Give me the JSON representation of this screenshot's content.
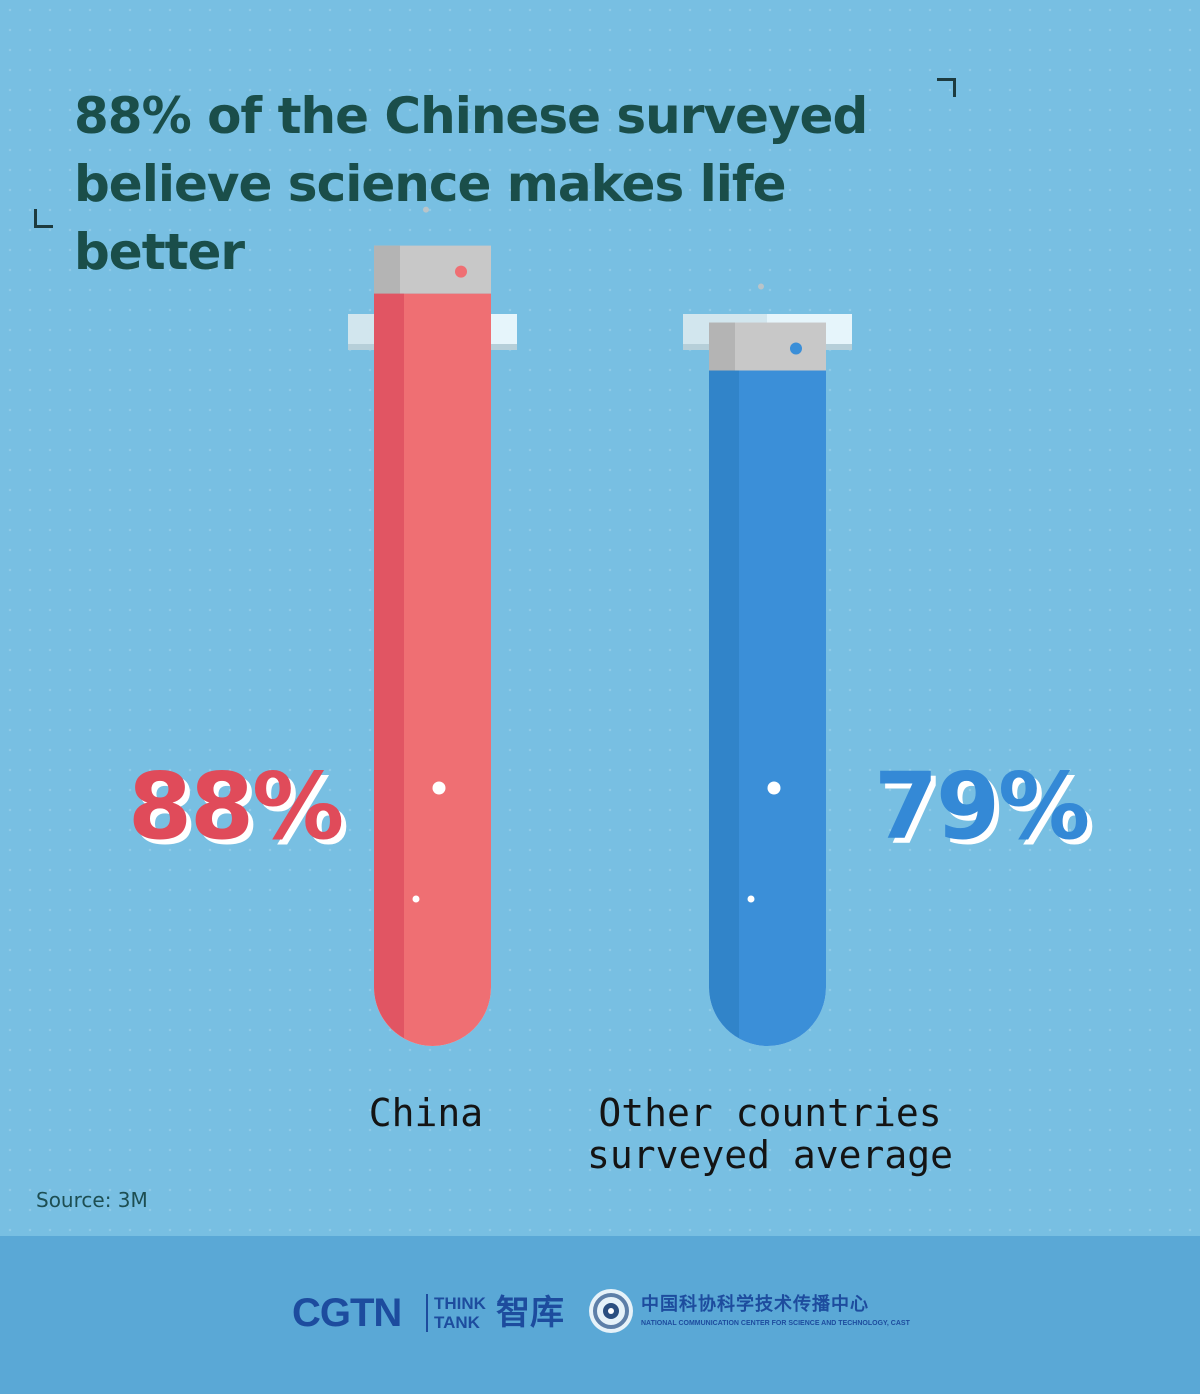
{
  "header": {
    "title_line1": "88% of the Chinese surveyed",
    "title_line2": "believe science makes life better"
  },
  "chart_data": {
    "type": "bar",
    "style": "test-tube",
    "title": "88% of the Chinese surveyed believe science makes life better",
    "unit": "%",
    "ylim": [
      0,
      100
    ],
    "categories": [
      "China",
      "Other countries surveyed average"
    ],
    "category_label_lines": [
      [
        "China"
      ],
      [
        "Other countries",
        "surveyed average"
      ]
    ],
    "values": [
      88,
      79
    ],
    "value_labels": [
      "88%",
      "79%"
    ],
    "colors": [
      "#ef6f73",
      "#3b8fd8"
    ]
  },
  "source": "Source: 3M",
  "footer": {
    "logo_cgtn": "CGTN",
    "logo_think": "THINK",
    "logo_tank": "TANK",
    "logo_cn": "智库",
    "center_cn": "中国科协科学技术传播中心",
    "center_en": "NATIONAL COMMUNICATION CENTER FOR SCIENCE AND TECHNOLOGY, CAST"
  },
  "colors": {
    "background": "#78bfe2",
    "footer_band": "#5aa8d6",
    "title": "#1a4e4a",
    "china": "#ef6f73",
    "china_dark": "#d53f55",
    "other": "#3b8fd8",
    "other_dark": "#2a7bbd",
    "tube_glass": "#e9f7fc",
    "tube_band": "#c8c8c8"
  }
}
